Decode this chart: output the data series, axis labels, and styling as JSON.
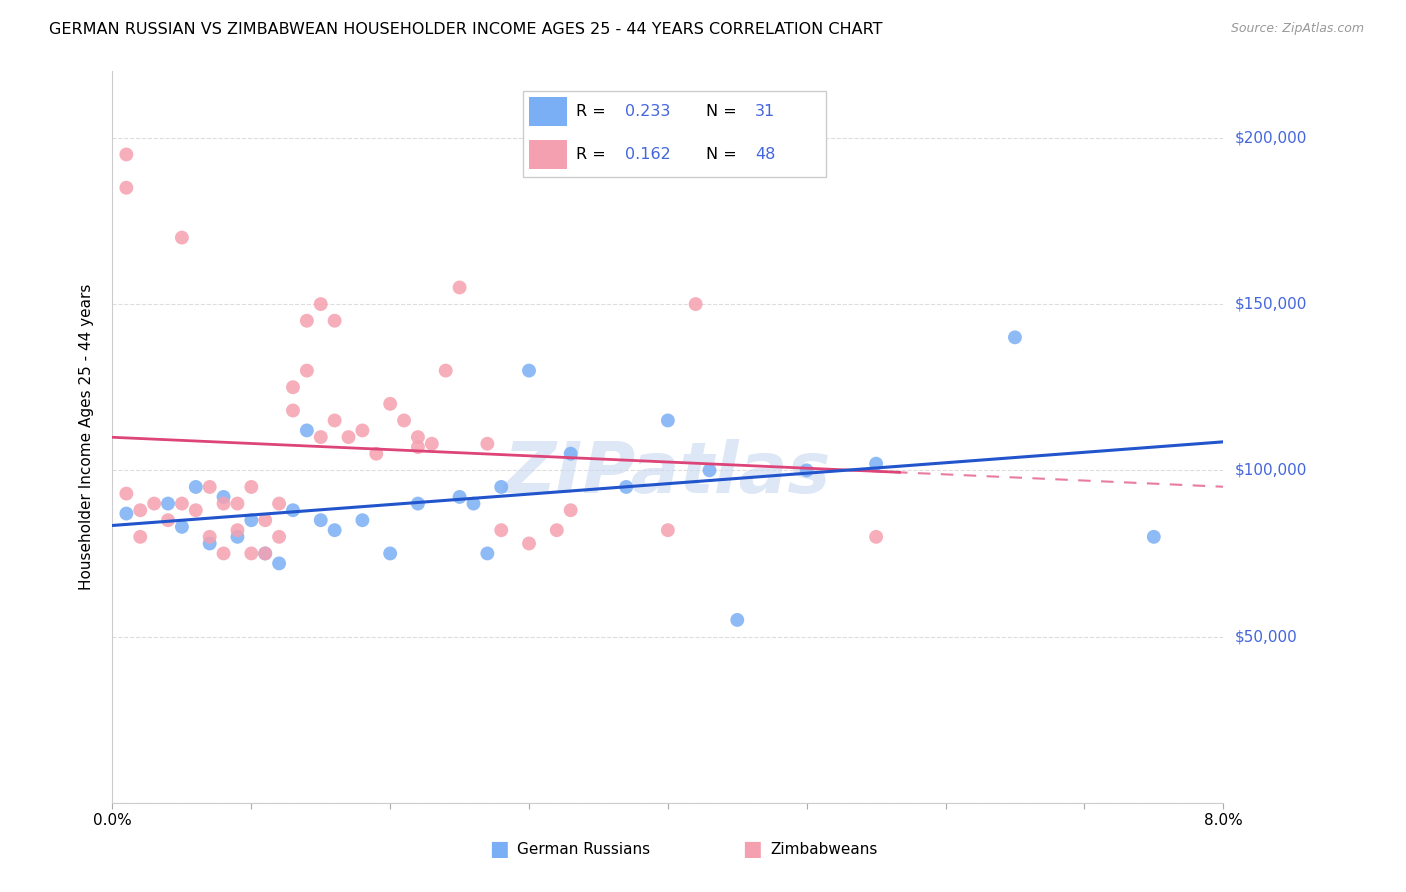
{
  "title": "GERMAN RUSSIAN VS ZIMBABWEAN HOUSEHOLDER INCOME AGES 25 - 44 YEARS CORRELATION CHART",
  "source": "Source: ZipAtlas.com",
  "ylabel": "Householder Income Ages 25 - 44 years",
  "xlim": [
    0.0,
    0.08
  ],
  "ylim": [
    0,
    220000
  ],
  "yticks": [
    0,
    50000,
    100000,
    150000,
    200000
  ],
  "ytick_labels": [
    "",
    "$50,000",
    "$100,000",
    "$150,000",
    "$200,000"
  ],
  "xticks": [
    0.0,
    0.01,
    0.02,
    0.03,
    0.04,
    0.05,
    0.06,
    0.07,
    0.08
  ],
  "xtick_labels": [
    "0.0%",
    "",
    "",
    "",
    "",
    "",
    "",
    "",
    "8.0%"
  ],
  "blue_color": "#7aaff5",
  "pink_color": "#f5a0b0",
  "trend_blue": "#2255cc",
  "trend_pink": "#dd4477",
  "label_color": "#4466dd",
  "legend_label1": "German Russians",
  "legend_label2": "Zimbabweans",
  "blue_r": 0.233,
  "blue_n": 31,
  "pink_r": 0.162,
  "pink_n": 48,
  "blue_scatter_x": [
    0.001,
    0.004,
    0.005,
    0.006,
    0.007,
    0.008,
    0.009,
    0.01,
    0.011,
    0.012,
    0.013,
    0.014,
    0.015,
    0.016,
    0.018,
    0.02,
    0.022,
    0.025,
    0.026,
    0.027,
    0.028,
    0.03,
    0.033,
    0.037,
    0.04,
    0.043,
    0.045,
    0.05,
    0.055,
    0.065,
    0.075
  ],
  "blue_scatter_y": [
    87000,
    90000,
    83000,
    95000,
    78000,
    92000,
    80000,
    85000,
    75000,
    72000,
    88000,
    112000,
    85000,
    82000,
    85000,
    75000,
    90000,
    92000,
    90000,
    75000,
    95000,
    130000,
    105000,
    95000,
    115000,
    100000,
    55000,
    100000,
    102000,
    140000,
    80000
  ],
  "pink_scatter_x": [
    0.001,
    0.001,
    0.001,
    0.002,
    0.002,
    0.003,
    0.004,
    0.005,
    0.005,
    0.006,
    0.007,
    0.007,
    0.008,
    0.008,
    0.009,
    0.009,
    0.01,
    0.01,
    0.011,
    0.011,
    0.012,
    0.012,
    0.013,
    0.013,
    0.014,
    0.014,
    0.015,
    0.015,
    0.016,
    0.016,
    0.017,
    0.018,
    0.019,
    0.02,
    0.021,
    0.022,
    0.022,
    0.023,
    0.024,
    0.025,
    0.027,
    0.028,
    0.03,
    0.032,
    0.033,
    0.04,
    0.042,
    0.055
  ],
  "pink_scatter_y": [
    195000,
    185000,
    93000,
    88000,
    80000,
    90000,
    85000,
    170000,
    90000,
    88000,
    80000,
    95000,
    90000,
    75000,
    82000,
    90000,
    95000,
    75000,
    85000,
    75000,
    90000,
    80000,
    125000,
    118000,
    145000,
    130000,
    150000,
    110000,
    145000,
    115000,
    110000,
    112000,
    105000,
    120000,
    115000,
    110000,
    107000,
    108000,
    130000,
    155000,
    108000,
    82000,
    78000,
    82000,
    88000,
    82000,
    150000,
    80000
  ],
  "watermark": "ZIPatlas",
  "watermark_color": "#c8d8f0"
}
